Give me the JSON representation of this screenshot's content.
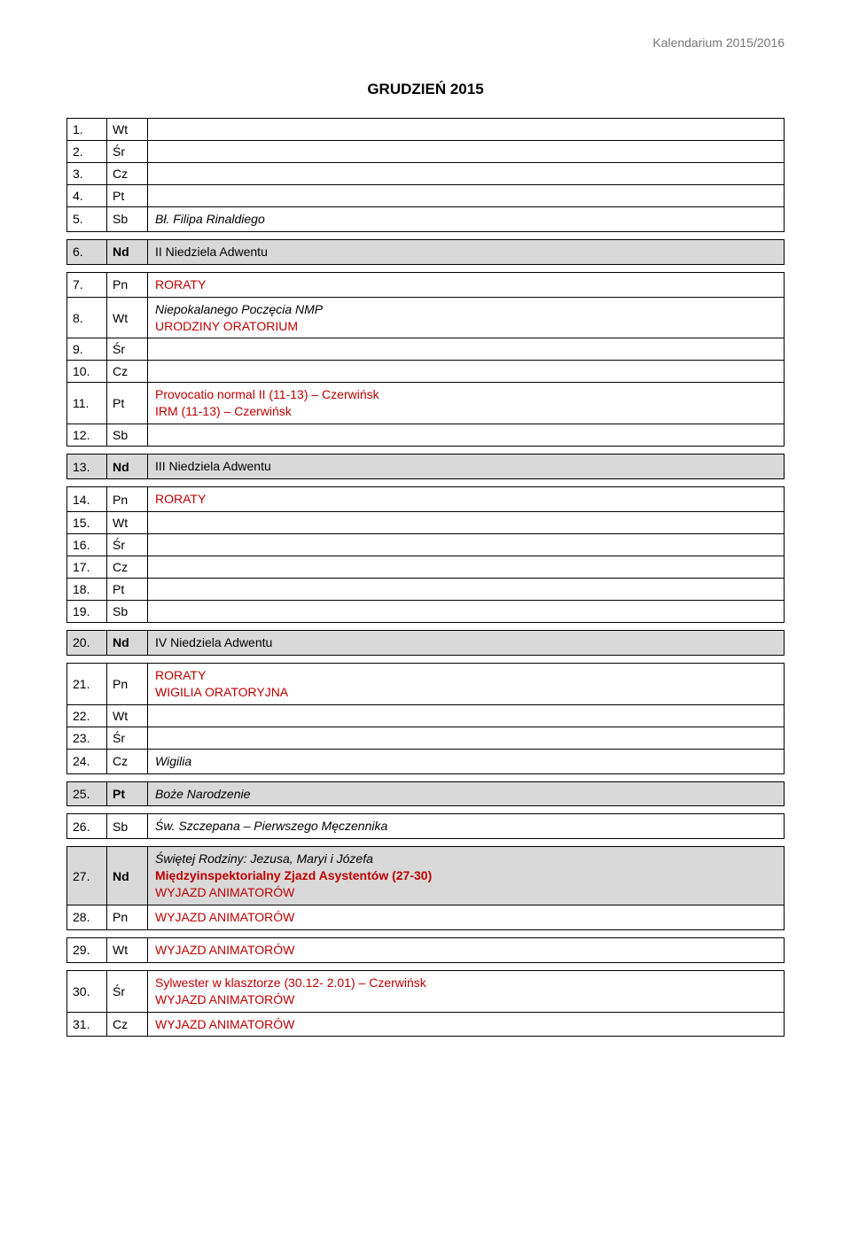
{
  "header": "Kalendarium 2015/2016",
  "title": "GRUDZIEŃ 2015",
  "blocks": [
    {
      "rows": [
        {
          "num": "1.",
          "day": "Wt",
          "lines": []
        },
        {
          "num": "2.",
          "day": "Śr",
          "lines": []
        },
        {
          "num": "3.",
          "day": "Cz",
          "lines": []
        },
        {
          "num": "4.",
          "day": "Pt",
          "lines": []
        },
        {
          "num": "5.",
          "day": "Sb",
          "lines": [
            {
              "text": "Bł. Filipa Rinaldiego",
              "italic": true
            }
          ]
        }
      ]
    },
    {
      "rows": [
        {
          "num": "6.",
          "day": "Nd",
          "nd": true,
          "lines": [
            {
              "text": "II Niedziela Adwentu"
            }
          ]
        }
      ]
    },
    {
      "rows": [
        {
          "num": "7.",
          "day": "Pn",
          "lines": [
            {
              "text": "RORATY",
              "red": true
            }
          ]
        },
        {
          "num": "8.",
          "day": "Wt",
          "lines": [
            {
              "text": "Niepokalanego Poczęcia NMP",
              "italic": true
            },
            {
              "text": "URODZINY ORATORIUM",
              "red": true
            }
          ]
        },
        {
          "num": "9.",
          "day": "Śr",
          "lines": []
        },
        {
          "num": "10.",
          "day": "Cz",
          "lines": []
        },
        {
          "num": "11.",
          "day": "Pt",
          "lines": [
            {
              "text": "Provocatio normal II (11-13) – Czerwińsk",
              "red": true
            },
            {
              "text": "IRM (11-13) – Czerwińsk",
              "red": true
            }
          ]
        },
        {
          "num": "12.",
          "day": "Sb",
          "lines": []
        }
      ]
    },
    {
      "rows": [
        {
          "num": "13.",
          "day": "Nd",
          "nd": true,
          "lines": [
            {
              "text": "III Niedziela Adwentu"
            }
          ]
        }
      ]
    },
    {
      "rows": [
        {
          "num": "14.",
          "day": "Pn",
          "lines": [
            {
              "text": "RORATY",
              "red": true
            }
          ]
        },
        {
          "num": "15.",
          "day": "Wt",
          "lines": []
        },
        {
          "num": "16.",
          "day": "Śr",
          "lines": []
        },
        {
          "num": "17.",
          "day": "Cz",
          "lines": []
        },
        {
          "num": "18.",
          "day": "Pt",
          "lines": []
        },
        {
          "num": "19.",
          "day": "Sb",
          "lines": []
        }
      ]
    },
    {
      "rows": [
        {
          "num": "20.",
          "day": "Nd",
          "nd": true,
          "lines": [
            {
              "text": "IV Niedziela Adwentu"
            }
          ]
        }
      ]
    },
    {
      "rows": [
        {
          "num": "21.",
          "day": "Pn",
          "lines": [
            {
              "text": "RORATY",
              "red": true
            },
            {
              "text": "WIGILIA ORATORYJNA",
              "red": true
            }
          ]
        },
        {
          "num": "22.",
          "day": "Wt",
          "lines": []
        },
        {
          "num": "23.",
          "day": "Śr",
          "lines": []
        },
        {
          "num": "24.",
          "day": "Cz",
          "lines": [
            {
              "text": "Wigilia",
              "italic": true
            }
          ]
        }
      ]
    },
    {
      "rows": [
        {
          "num": "25.",
          "day": "Pt",
          "nd": true,
          "lines": [
            {
              "text": "Boże Narodzenie",
              "italic": true
            }
          ]
        }
      ]
    },
    {
      "rows": [
        {
          "num": "26.",
          "day": "Sb",
          "lines": [
            {
              "text": "Św. Szczepana – Pierwszego Męczennika",
              "italic": true
            }
          ]
        }
      ]
    },
    {
      "rows": [
        {
          "num": "27.",
          "day": "Nd",
          "nd": true,
          "lines": [
            {
              "text": "Świętej Rodziny: Jezusa, Maryi i Józefa",
              "italic": true
            },
            {
              "text": "Międzyinspektorialny Zjazd Asystentów (27-30)",
              "red": true,
              "bold": true
            },
            {
              "text": "WYJAZD ANIMATORÓW",
              "red": true
            }
          ]
        },
        {
          "num": "28.",
          "day": "Pn",
          "lines": [
            {
              "text": "WYJAZD ANIMATORÓW",
              "red": true
            }
          ]
        }
      ]
    },
    {
      "rows": [
        {
          "num": "29.",
          "day": "Wt",
          "lines": [
            {
              "text": "WYJAZD ANIMATORÓW",
              "red": true
            }
          ]
        }
      ]
    },
    {
      "rows": [
        {
          "num": "30.",
          "day": "Śr",
          "lines": [
            {
              "text": "Sylwester w klasztorze (30.12- 2.01) – Czerwińsk",
              "red": true
            },
            {
              "text": "WYJAZD ANIMATORÓW",
              "red": true
            }
          ]
        },
        {
          "num": "31.",
          "day": "Cz",
          "lines": [
            {
              "text": "WYJAZD ANIMATORÓW",
              "red": true
            }
          ]
        }
      ]
    }
  ]
}
